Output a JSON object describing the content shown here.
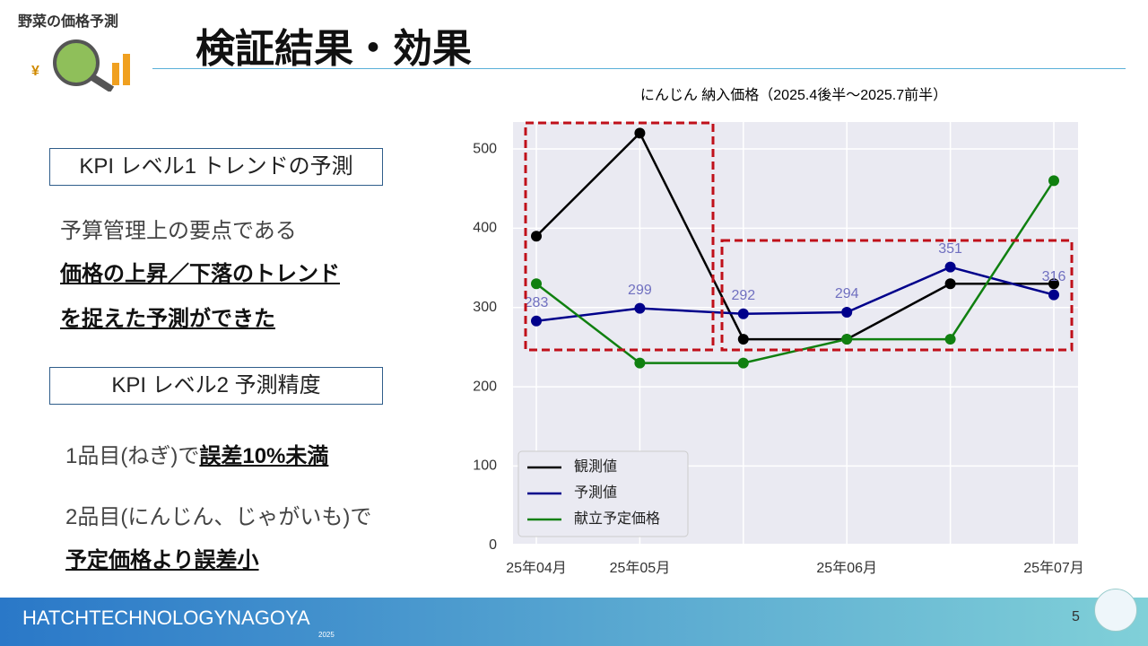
{
  "logo": "野菜の価格予測",
  "title": "検証結果・効果",
  "kpi1": {
    "heading": "KPI レベル1 トレンドの予測",
    "lines": [
      "予算管理上の要点である",
      "価格の上昇／下落のトレンド",
      "を捉えた予測ができた"
    ]
  },
  "kpi2": {
    "heading": "KPI レベル2 予測精度",
    "line1": [
      "1品目(ねぎ)で",
      "誤差10%未満"
    ],
    "line2": "2品目(にんじん、じゃがいも)で",
    "line3": "予定価格より誤差小"
  },
  "footer": {
    "brand": "HATCHTECHNOLOGYNAGOYA",
    "year": "2025",
    "page": "5"
  },
  "chart_data": {
    "type": "line",
    "title": "にんじん 納入価格（2025.4後半〜2025.7前半）",
    "categories": [
      "25年04月",
      "25年05月",
      null,
      "25年06月",
      null,
      "25年07月"
    ],
    "series": [
      {
        "name": "観測値",
        "color": "#000000",
        "values": [
          390,
          520,
          260,
          260,
          330,
          330
        ]
      },
      {
        "name": "予測値",
        "color": "#00008b",
        "values": [
          283,
          299,
          292,
          294,
          351,
          316
        ]
      },
      {
        "name": "献立予定価格",
        "color": "#108010",
        "values": [
          330,
          230,
          230,
          260,
          260,
          460
        ]
      }
    ],
    "ylim": [
      2,
      534
    ],
    "yticks": [
      0,
      100,
      200,
      300,
      400,
      500
    ],
    "grid": true,
    "legend": "lower left"
  }
}
